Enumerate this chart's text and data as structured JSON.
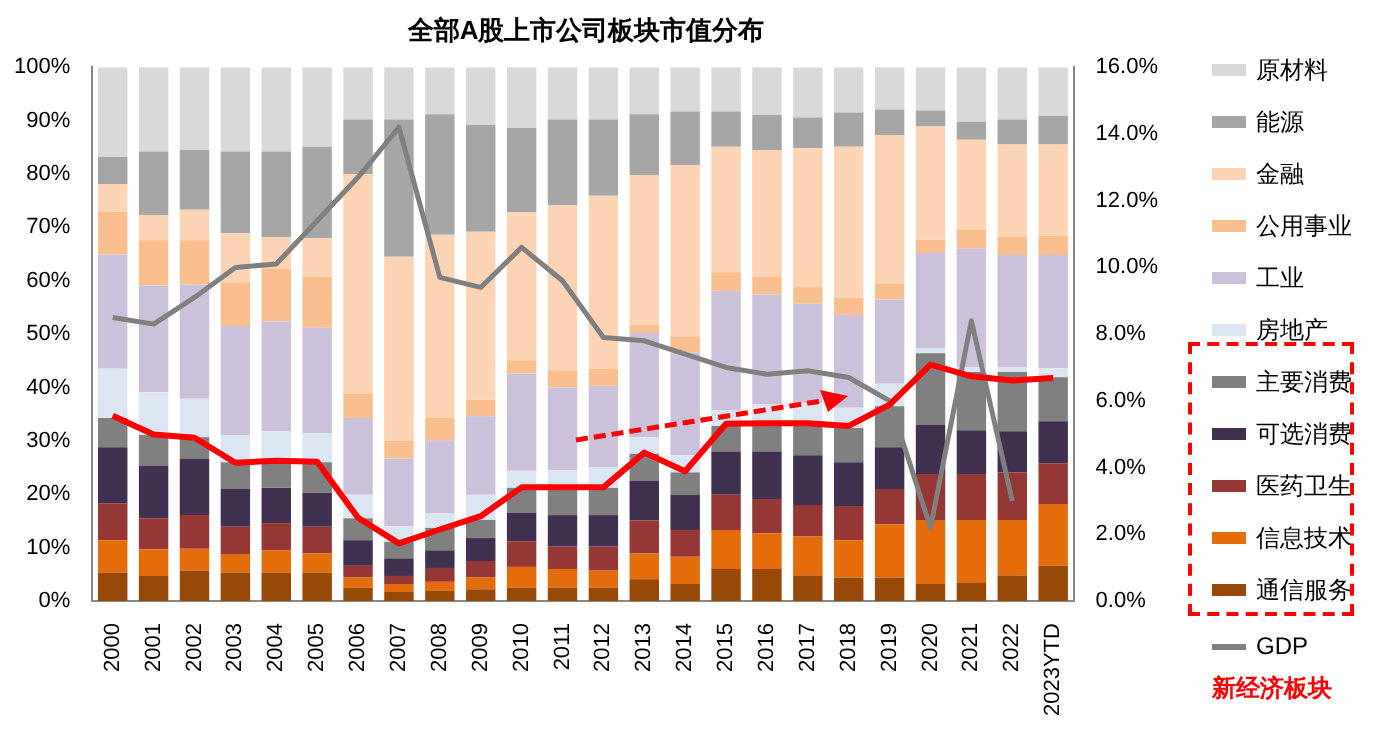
{
  "chart_data": {
    "type": "bar",
    "title": "全部A股上市公司板块市值分布",
    "stacked": true,
    "legend": "right",
    "marker": "none",
    "line_style": "solid",
    "categories": [
      "2000",
      "2001",
      "2002",
      "2003",
      "2004",
      "2005",
      "2006",
      "2007",
      "2008",
      "2009",
      "2010",
      "2011",
      "2012",
      "2013",
      "2014",
      "2015",
      "2016",
      "2017",
      "2018",
      "2019",
      "2020",
      "2021",
      "2022",
      "2023YTD"
    ],
    "ylim": [
      0,
      100
    ],
    "yticks": [
      {
        "value": 0,
        "label": "0%"
      },
      {
        "value": 10,
        "label": "10%"
      },
      {
        "value": 20,
        "label": "20%"
      },
      {
        "value": 30,
        "label": "30%"
      },
      {
        "value": 40,
        "label": "40%"
      },
      {
        "value": 50,
        "label": "50%"
      },
      {
        "value": 60,
        "label": "60%"
      },
      {
        "value": 70,
        "label": "70%"
      },
      {
        "value": 80,
        "label": "80%"
      },
      {
        "value": 90,
        "label": "90%"
      },
      {
        "value": 100,
        "label": "100%"
      }
    ],
    "y2lim": [
      0,
      16
    ],
    "y2ticks": [
      {
        "value": 0,
        "label": "0.0%"
      },
      {
        "value": 2,
        "label": "2.0%"
      },
      {
        "value": 4,
        "label": "4.0%"
      },
      {
        "value": 6,
        "label": "6.0%"
      },
      {
        "value": 8,
        "label": "8.0%"
      },
      {
        "value": 10,
        "label": "10.0%"
      },
      {
        "value": 12,
        "label": "12.0%"
      },
      {
        "value": 14,
        "label": "14.0%"
      },
      {
        "value": 16,
        "label": "16.0%"
      }
    ],
    "series": [
      {
        "name": "通信服务",
        "color": "#984807",
        "values": [
          5.3,
          4.7,
          5.7,
          5.3,
          5.3,
          5.3,
          2.5,
          1.7,
          1.9,
          2.2,
          2.5,
          2.5,
          2.5,
          4.1,
          3.2,
          6.0,
          6.0,
          4.8,
          4.4,
          4.4,
          3.2,
          3.4,
          4.8,
          6.6
        ]
      },
      {
        "name": "信息技术",
        "color": "#e46c0a",
        "values": [
          6.1,
          5.0,
          4.1,
          3.5,
          4.2,
          3.6,
          1.9,
          1.5,
          1.7,
          2.2,
          3.9,
          3.5,
          3.2,
          4.8,
          5.1,
          7.3,
          6.7,
          7.3,
          7.0,
          10.0,
          12.0,
          11.8,
          10.4,
          11.6
        ]
      },
      {
        "name": "医药卫生",
        "color": "#953735",
        "values": [
          6.9,
          5.8,
          6.3,
          5.1,
          5.1,
          5.0,
          2.2,
          1.5,
          2.6,
          3.1,
          4.8,
          4.2,
          4.5,
          6.2,
          5.0,
          6.6,
          6.4,
          5.9,
          6.4,
          6.6,
          8.6,
          8.6,
          8.9,
          7.6
        ]
      },
      {
        "name": "可选消费",
        "color": "#403151",
        "values": [
          10.5,
          9.9,
          10.6,
          7.1,
          6.6,
          6.4,
          4.8,
          3.3,
          3.3,
          4.3,
          5.3,
          5.9,
          5.9,
          7.5,
          6.6,
          8.1,
          8.9,
          9.3,
          8.2,
          7.8,
          9.2,
          8.2,
          7.7,
          7.9
        ]
      },
      {
        "name": "主要消费",
        "color": "#808080",
        "values": [
          5.5,
          5.7,
          4.0,
          5.0,
          5.1,
          5.7,
          4.1,
          3.1,
          4.2,
          3.4,
          4.7,
          5.5,
          5.1,
          5.0,
          4.2,
          4.8,
          4.8,
          5.7,
          6.4,
          7.7,
          13.4,
          10.9,
          11.1,
          8.2
        ]
      },
      {
        "name": "房地产",
        "color": "#dce6f2",
        "values": [
          9.2,
          8.0,
          7.2,
          5.1,
          5.5,
          5.4,
          4.4,
          2.9,
          2.7,
          4.7,
          3.2,
          2.9,
          3.8,
          3.1,
          3.2,
          3.0,
          4.0,
          4.1,
          3.8,
          4.2,
          0.9,
          0.9,
          0.9,
          1.7
        ]
      },
      {
        "name": "工业",
        "color": "#ccc1da",
        "values": [
          21.4,
          20.0,
          21.4,
          20.4,
          20.6,
          19.8,
          14.4,
          12.7,
          13.7,
          14.7,
          18.2,
          15.5,
          15.3,
          19.5,
          19.3,
          22.3,
          20.6,
          18.6,
          17.4,
          15.8,
          17.9,
          22.3,
          21.0,
          21.2
        ]
      },
      {
        "name": "公用事业",
        "color": "#f9bf8f",
        "values": [
          8.0,
          8.5,
          8.3,
          8.2,
          9.9,
          9.5,
          4.5,
          3.4,
          4.2,
          3.1,
          2.5,
          3.2,
          3.2,
          1.5,
          3.0,
          3.5,
          3.3,
          3.1,
          3.2,
          3.0,
          2.5,
          3.4,
          3.4,
          3.6
        ]
      },
      {
        "name": "金融",
        "color": "#fdd5b4",
        "values": [
          5.2,
          4.7,
          5.7,
          9.2,
          5.9,
          7.3,
          41.2,
          34.4,
          34.3,
          31.5,
          27.7,
          30.9,
          32.4,
          28.1,
          32.1,
          23.5,
          23.8,
          26.0,
          28.3,
          27.8,
          21.2,
          16.9,
          17.3,
          17.1
        ]
      },
      {
        "name": "能源",
        "color": "#a6a6a6",
        "values": [
          5.1,
          11.9,
          11.2,
          15.3,
          16.0,
          17.1,
          10.2,
          25.7,
          22.6,
          20.0,
          15.8,
          16.1,
          14.3,
          11.4,
          10.0,
          6.6,
          6.6,
          5.8,
          6.4,
          4.8,
          3.0,
          3.4,
          4.7,
          5.4
        ]
      },
      {
        "name": "原材料",
        "color": "#d9d9d9",
        "values": [
          16.8,
          15.8,
          15.5,
          15.8,
          15.8,
          14.9,
          9.8,
          9.8,
          8.8,
          10.8,
          11.4,
          9.8,
          9.8,
          8.8,
          8.3,
          8.3,
          8.9,
          9.4,
          8.5,
          7.9,
          8.1,
          10.2,
          9.8,
          9.1
        ]
      },
      {
        "type": "line",
        "color": "#ff0000",
        "values": [
          34.7,
          31.2,
          30.6,
          25.9,
          26.3,
          26.1,
          15.6,
          10.8,
          13.4,
          15.9,
          21.3,
          21.3,
          21.3,
          27.8,
          24.3,
          33.2,
          33.3,
          33.3,
          32.8,
          36.8,
          44.3,
          42.1,
          41.3,
          41.8
        ]
      },
      {
        "type": "line",
        "name": "GDP",
        "axis": "y2",
        "color": "#808080",
        "values": [
          8.5,
          8.3,
          9.1,
          10.0,
          10.1,
          11.4,
          12.7,
          14.2,
          9.7,
          9.4,
          10.6,
          9.6,
          7.9,
          7.8,
          7.4,
          7.0,
          6.8,
          6.9,
          6.7,
          6.0,
          2.2,
          8.4,
          3.0,
          null
        ]
      }
    ],
    "annotations": [
      "新经济板块"
    ]
  }
}
